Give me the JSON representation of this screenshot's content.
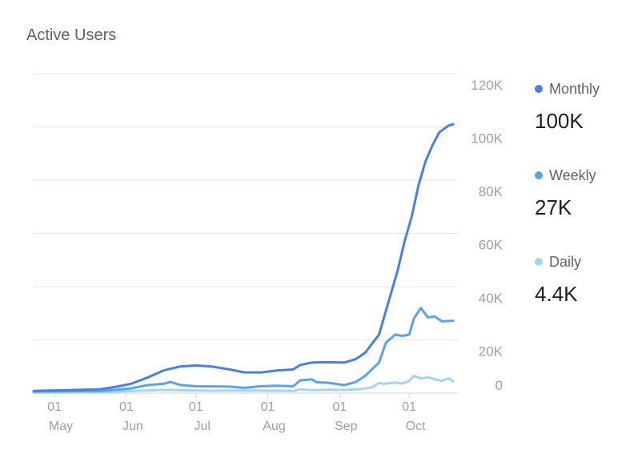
{
  "title": "Active Users",
  "legend": [
    {
      "name": "Monthly",
      "value": "100K",
      "color": "#4a7fe0"
    },
    {
      "name": "Weekly",
      "value": "27K",
      "color": "#5aa3ea"
    },
    {
      "name": "Daily",
      "value": "4.4K",
      "color": "#a6d4ec"
    }
  ],
  "chart_data": {
    "type": "line",
    "title": "Active Users",
    "y_ticks": [
      "0",
      "20K",
      "40K",
      "60K",
      "80K",
      "100K",
      "120K"
    ],
    "ylim": [
      0,
      120000
    ],
    "x_ticks": [
      {
        "day": "01",
        "month": "May",
        "date": "2018-05-01"
      },
      {
        "day": "01",
        "month": "Jun",
        "date": "2018-06-01"
      },
      {
        "day": "01",
        "month": "Jul",
        "date": "2018-07-01"
      },
      {
        "day": "01",
        "month": "Aug",
        "date": "2018-08-01"
      },
      {
        "day": "01",
        "month": "Sep",
        "date": "2018-09-01"
      },
      {
        "day": "01",
        "month": "Oct",
        "date": "2018-10-01"
      }
    ],
    "xlim": [
      "2018-04-22",
      "2018-10-22"
    ],
    "grid": true,
    "legend_position": "right",
    "series": [
      {
        "name": "Monthly",
        "color": "#4a7fe0",
        "points": [
          [
            "2018-04-22",
            800
          ],
          [
            "2018-05-10",
            1200
          ],
          [
            "2018-05-20",
            1400
          ],
          [
            "2018-05-27",
            2300
          ],
          [
            "2018-06-03",
            3500
          ],
          [
            "2018-06-10",
            5800
          ],
          [
            "2018-06-17",
            8500
          ],
          [
            "2018-06-24",
            10000
          ],
          [
            "2018-07-01",
            10400
          ],
          [
            "2018-07-08",
            10000
          ],
          [
            "2018-07-15",
            9000
          ],
          [
            "2018-07-22",
            7800
          ],
          [
            "2018-07-29",
            7800
          ],
          [
            "2018-08-05",
            8500
          ],
          [
            "2018-08-12",
            8900
          ],
          [
            "2018-08-15",
            10600
          ],
          [
            "2018-08-20",
            11500
          ],
          [
            "2018-08-27",
            11600
          ],
          [
            "2018-09-03",
            11500
          ],
          [
            "2018-09-08",
            12800
          ],
          [
            "2018-09-12",
            15200
          ],
          [
            "2018-09-18",
            22000
          ],
          [
            "2018-09-20",
            28000
          ],
          [
            "2018-09-23",
            37000
          ],
          [
            "2018-09-26",
            46000
          ],
          [
            "2018-09-29",
            57000
          ],
          [
            "2018-10-02",
            66000
          ],
          [
            "2018-10-05",
            78000
          ],
          [
            "2018-10-08",
            87000
          ],
          [
            "2018-10-11",
            93000
          ],
          [
            "2018-10-14",
            98000
          ],
          [
            "2018-10-18",
            100500
          ],
          [
            "2018-10-20",
            101000
          ]
        ]
      },
      {
        "name": "Weekly",
        "color": "#5aa3ea",
        "points": [
          [
            "2018-04-22",
            600
          ],
          [
            "2018-05-20",
            800
          ],
          [
            "2018-05-27",
            1200
          ],
          [
            "2018-06-03",
            1800
          ],
          [
            "2018-06-10",
            3000
          ],
          [
            "2018-06-17",
            3500
          ],
          [
            "2018-06-20",
            4200
          ],
          [
            "2018-06-24",
            3100
          ],
          [
            "2018-07-01",
            2600
          ],
          [
            "2018-07-15",
            2500
          ],
          [
            "2018-07-22",
            2000
          ],
          [
            "2018-07-29",
            2600
          ],
          [
            "2018-08-05",
            2800
          ],
          [
            "2018-08-12",
            2600
          ],
          [
            "2018-08-15",
            4800
          ],
          [
            "2018-08-20",
            5200
          ],
          [
            "2018-08-22",
            4100
          ],
          [
            "2018-08-27",
            3900
          ],
          [
            "2018-09-03",
            3000
          ],
          [
            "2018-09-08",
            4200
          ],
          [
            "2018-09-12",
            6500
          ],
          [
            "2018-09-18",
            11500
          ],
          [
            "2018-09-21",
            19000
          ],
          [
            "2018-09-25",
            22000
          ],
          [
            "2018-09-28",
            21500
          ],
          [
            "2018-10-01",
            22000
          ],
          [
            "2018-10-03",
            28000
          ],
          [
            "2018-10-06",
            32000
          ],
          [
            "2018-10-09",
            28500
          ],
          [
            "2018-10-12",
            28800
          ],
          [
            "2018-10-15",
            27000
          ],
          [
            "2018-10-20",
            27200
          ]
        ]
      },
      {
        "name": "Daily",
        "color": "#a6d4ec",
        "points": [
          [
            "2018-04-22",
            200
          ],
          [
            "2018-05-20",
            300
          ],
          [
            "2018-06-03",
            800
          ],
          [
            "2018-06-17",
            1200
          ],
          [
            "2018-06-24",
            1100
          ],
          [
            "2018-07-08",
            900
          ],
          [
            "2018-07-22",
            1000
          ],
          [
            "2018-08-05",
            900
          ],
          [
            "2018-08-12",
            800
          ],
          [
            "2018-08-15",
            1400
          ],
          [
            "2018-08-20",
            1100
          ],
          [
            "2018-08-27",
            1300
          ],
          [
            "2018-09-03",
            1200
          ],
          [
            "2018-09-10",
            1500
          ],
          [
            "2018-09-15",
            2200
          ],
          [
            "2018-09-18",
            3800
          ],
          [
            "2018-09-20",
            3500
          ],
          [
            "2018-09-25",
            4000
          ],
          [
            "2018-09-28",
            3600
          ],
          [
            "2018-10-01",
            4500
          ],
          [
            "2018-10-03",
            6500
          ],
          [
            "2018-10-06",
            5500
          ],
          [
            "2018-10-09",
            6000
          ],
          [
            "2018-10-12",
            5200
          ],
          [
            "2018-10-15",
            4600
          ],
          [
            "2018-10-18",
            5600
          ],
          [
            "2018-10-20",
            4400
          ]
        ]
      }
    ]
  }
}
